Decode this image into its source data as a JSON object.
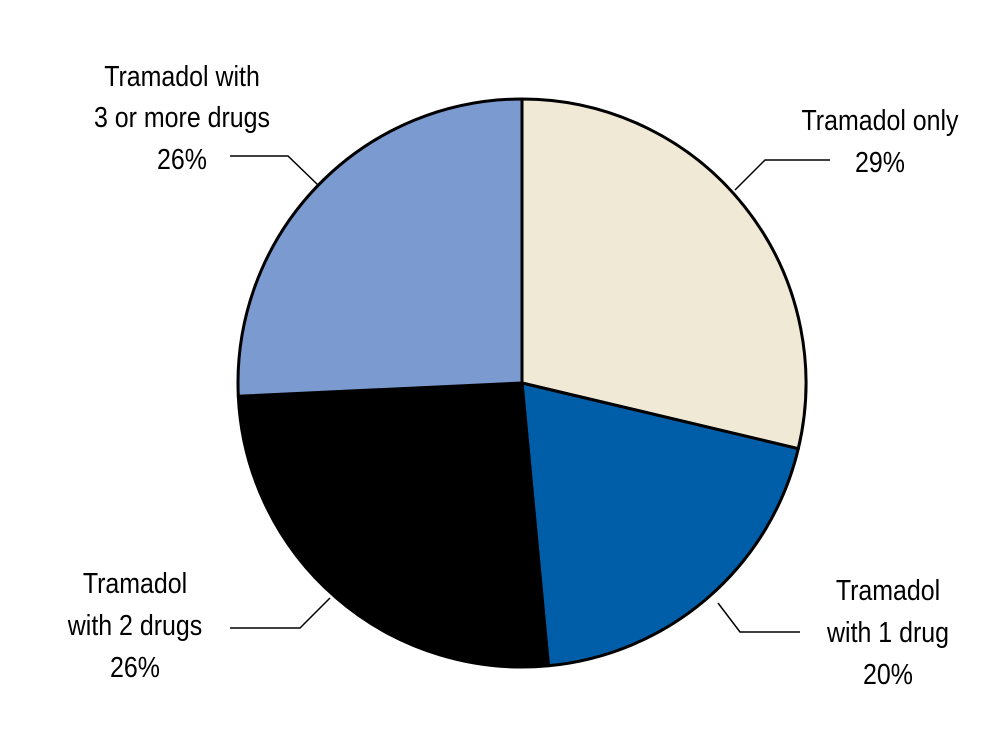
{
  "chart_data": {
    "type": "pie",
    "start": "12 o'clock",
    "direction": "clockwise",
    "slices": [
      {
        "label_lines": [
          "Tramadol only"
        ],
        "value": 29,
        "value_label": "29%",
        "color": "#F0E9D6"
      },
      {
        "label_lines": [
          "Tramadol",
          "with 1 drug"
        ],
        "value": 20,
        "value_label": "20%",
        "color": "#005EA8"
      },
      {
        "label_lines": [
          "Tramadol",
          "with 2 drugs"
        ],
        "value": 26,
        "value_label": "26%",
        "color": "#000000"
      },
      {
        "label_lines": [
          "Tramadol with",
          "3 or more drugs"
        ],
        "value": 26,
        "value_label": "26%",
        "color": "#7B9BD0"
      }
    ]
  }
}
